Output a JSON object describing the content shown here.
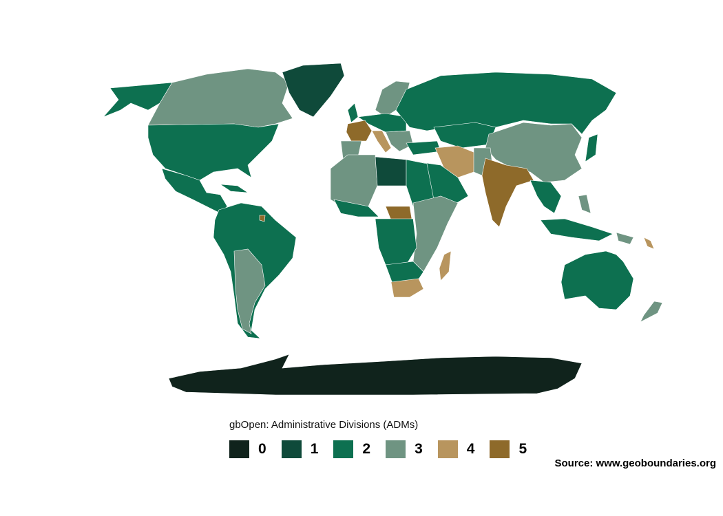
{
  "legend": {
    "title": "gbOpen: Administrative Divisions (ADMs)",
    "items": [
      {
        "label": "0",
        "color": "#10231c"
      },
      {
        "label": "1",
        "color": "#0f4a3a"
      },
      {
        "label": "2",
        "color": "#0d7050"
      },
      {
        "label": "3",
        "color": "#6f9482"
      },
      {
        "label": "4",
        "color": "#b8955e"
      },
      {
        "label": "5",
        "color": "#8e6a2a"
      }
    ]
  },
  "source": "Source: www.geoboundaries.org"
}
